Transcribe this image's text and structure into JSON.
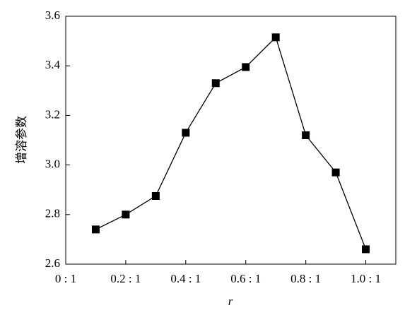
{
  "chart_data": {
    "type": "line",
    "x_label": "r",
    "y_label": "增溶参数",
    "x": [
      0.1,
      0.2,
      0.3,
      0.4,
      0.5,
      0.6,
      0.7,
      0.8,
      0.9,
      1.0
    ],
    "series": [
      {
        "color": "#000000",
        "values": [
          2.74,
          2.8,
          2.875,
          3.13,
          3.33,
          3.395,
          3.515,
          3.12,
          2.97,
          2.66
        ]
      }
    ],
    "xlim": [
      0,
      1.1
    ],
    "xticks": [
      {
        "value": 0,
        "label": "0 : 1"
      },
      {
        "value": 0.2,
        "label": "0.2 : 1"
      },
      {
        "value": 0.4,
        "label": "0.4 : 1"
      },
      {
        "value": 0.6,
        "label": "0.6 : 1"
      },
      {
        "value": 0.8,
        "label": "0.8 : 1"
      },
      {
        "value": 1.0,
        "label": "1.0 : 1"
      }
    ],
    "ylim": [
      2.6,
      3.6
    ],
    "yticks": [
      2.6,
      2.8,
      {
        "value": 3.0,
        "label": "3.0"
      },
      3.2,
      3.4,
      3.6
    ],
    "marker": "square",
    "grid": false
  }
}
